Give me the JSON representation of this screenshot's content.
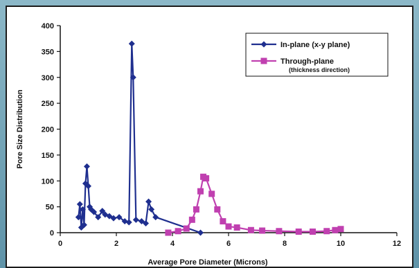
{
  "chart_data": {
    "type": "line",
    "title": "",
    "xlabel": "Average Pore Diameter (Microns)",
    "ylabel": "Pore Size Distribution",
    "xlim": [
      0,
      12
    ],
    "ylim": [
      0,
      400
    ],
    "xticks": [
      "0",
      "2",
      "4",
      "6",
      "8",
      "10",
      "12"
    ],
    "yticks": [
      "0",
      "50",
      "100",
      "150",
      "200",
      "250",
      "300",
      "350",
      "400"
    ],
    "grid": false,
    "legend_position": "top-right",
    "series": [
      {
        "name": "In-plane (x-y plane)",
        "color": "#1f2f8f",
        "marker": "diamond",
        "x": [
          0.65,
          0.7,
          0.75,
          0.8,
          0.85,
          0.9,
          0.95,
          1.0,
          1.05,
          1.1,
          1.2,
          1.35,
          1.5,
          1.6,
          1.75,
          1.9,
          2.1,
          2.3,
          2.45,
          2.55,
          2.6,
          2.7,
          2.9,
          3.05,
          3.15,
          3.25,
          3.4,
          5.0
        ],
        "y": [
          30,
          55,
          10,
          45,
          15,
          95,
          128,
          90,
          50,
          45,
          40,
          30,
          42,
          35,
          32,
          28,
          30,
          22,
          20,
          365,
          300,
          25,
          22,
          18,
          60,
          45,
          30,
          0
        ]
      },
      {
        "name": "Through-plane",
        "sublabel": "(thickness direction)",
        "color": "#c040b0",
        "marker": "square",
        "x": [
          3.85,
          4.2,
          4.5,
          4.7,
          4.85,
          5.0,
          5.1,
          5.2,
          5.4,
          5.6,
          5.8,
          6.0,
          6.3,
          6.8,
          7.2,
          7.8,
          8.5,
          9.0,
          9.5,
          9.8,
          10.0
        ],
        "y": [
          0,
          3,
          8,
          25,
          45,
          80,
          108,
          105,
          75,
          45,
          22,
          12,
          10,
          5,
          4,
          3,
          2,
          2,
          3,
          5,
          7
        ]
      }
    ]
  }
}
